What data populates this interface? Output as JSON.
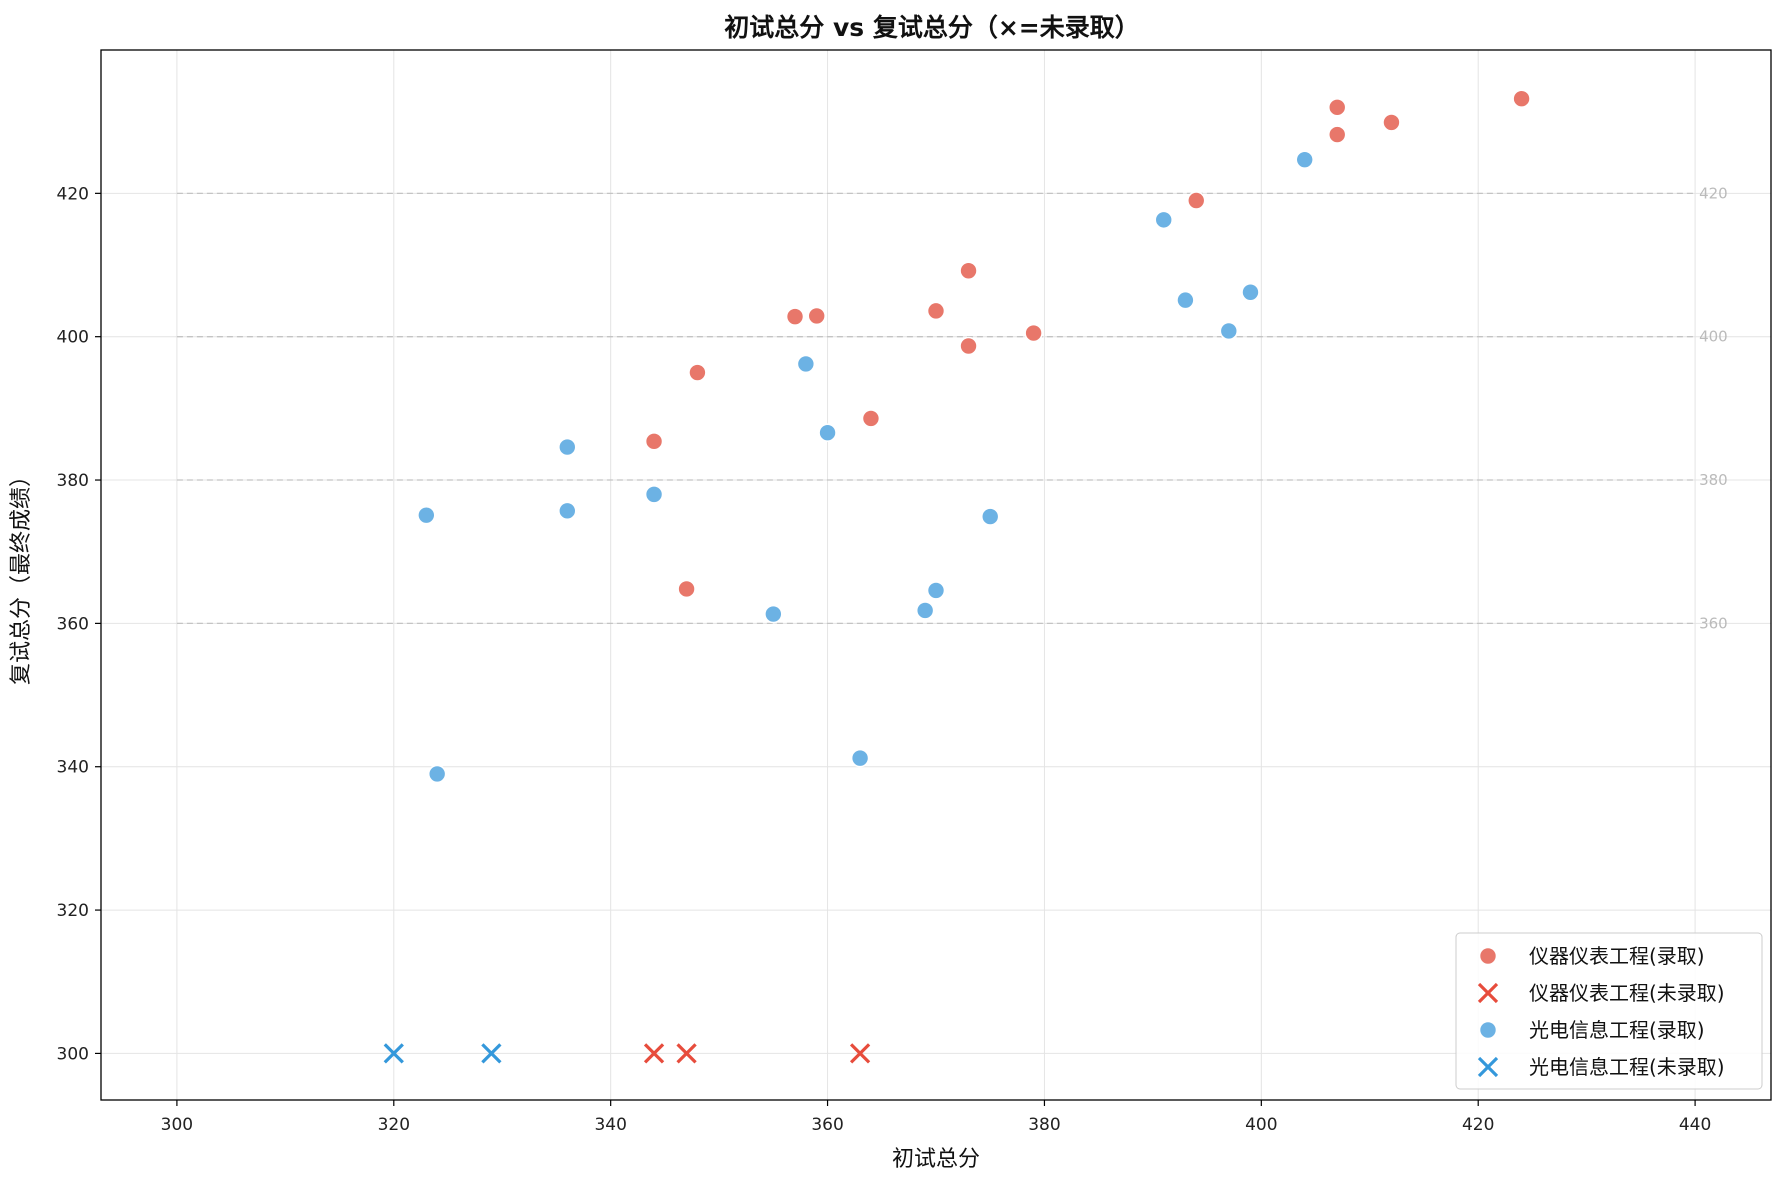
{
  "chart_data": {
    "type": "scatter",
    "title": "初试总分 vs 复试总分（×=未录取）",
    "xlabel": "初试总分",
    "ylabel": "复试总分（最终成绩）",
    "xlim": [
      293,
      447
    ],
    "ylim": [
      293.5,
      440
    ],
    "x_ticks": [
      300,
      320,
      340,
      360,
      380,
      400,
      420,
      440
    ],
    "y_ticks": [
      300,
      320,
      340,
      360,
      380,
      400,
      420
    ],
    "right_reference_lines": [
      360,
      380,
      400,
      420
    ],
    "grid": true,
    "legend_position": "lower-right",
    "series": [
      {
        "name": "仪器仪表工程(录取)",
        "marker": "circle",
        "color": "#e8776a",
        "points": [
          [
            424,
            433.2
          ],
          [
            407,
            432
          ],
          [
            412,
            429.9
          ],
          [
            407,
            428.2
          ],
          [
            394,
            419
          ],
          [
            373,
            409.2
          ],
          [
            370,
            403.6
          ],
          [
            357,
            402.8
          ],
          [
            359,
            402.9
          ],
          [
            379,
            400.5
          ],
          [
            373,
            398.7
          ],
          [
            348,
            395
          ],
          [
            364,
            388.6
          ],
          [
            344,
            385.4
          ],
          [
            347,
            364.8
          ]
        ]
      },
      {
        "name": "仪器仪表工程(未录取)",
        "marker": "x",
        "color": "#e74c3c",
        "points": [
          [
            344,
            300
          ],
          [
            347,
            300
          ],
          [
            363,
            300
          ]
        ]
      },
      {
        "name": "光电信息工程(录取)",
        "marker": "circle",
        "color": "#6cb2e4",
        "points": [
          [
            404,
            424.7
          ],
          [
            391,
            416.3
          ],
          [
            399,
            406.2
          ],
          [
            393,
            405.1
          ],
          [
            397,
            400.8
          ],
          [
            358,
            396.2
          ],
          [
            360,
            386.6
          ],
          [
            336,
            384.6
          ],
          [
            344,
            378
          ],
          [
            336,
            375.7
          ],
          [
            323,
            375.1
          ],
          [
            375,
            374.9
          ],
          [
            370,
            364.6
          ],
          [
            355,
            361.3
          ],
          [
            369,
            361.8
          ],
          [
            363,
            341.2
          ],
          [
            324,
            339
          ]
        ]
      },
      {
        "name": "光电信息工程(未录取)",
        "marker": "x",
        "color": "#3498db",
        "points": [
          [
            320,
            300
          ],
          [
            329,
            300
          ]
        ]
      }
    ]
  }
}
